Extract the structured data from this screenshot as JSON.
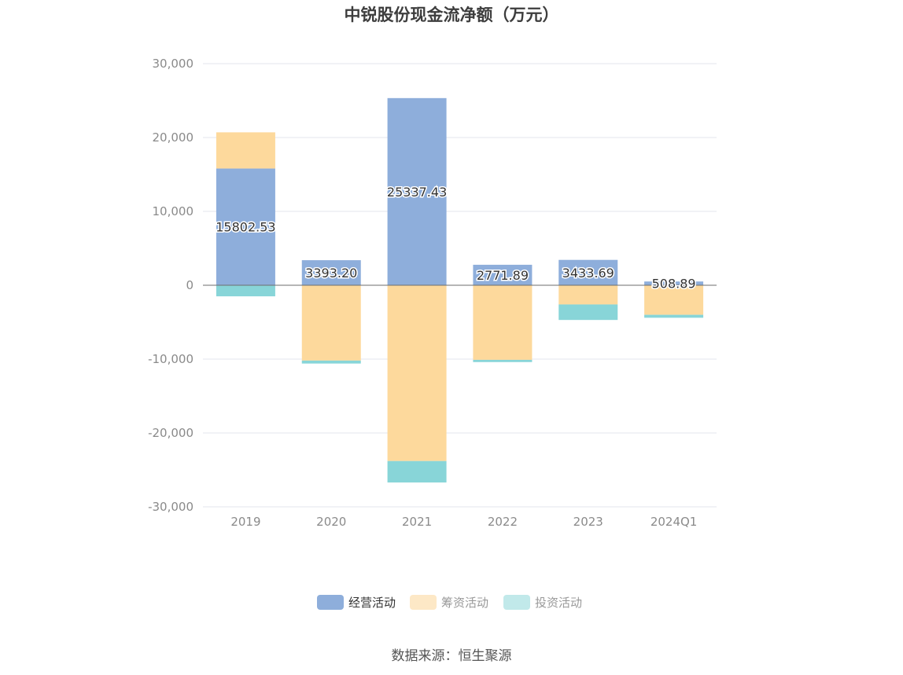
{
  "chart_data": {
    "type": "bar",
    "stacked": true,
    "title": "中锐股份现金流净额（万元）",
    "categories": [
      "2019",
      "2020",
      "2021",
      "2022",
      "2023",
      "2024Q1"
    ],
    "series": [
      {
        "name": "经营活动",
        "color": "#8eaedb",
        "values": [
          15802.53,
          3393.2,
          25337.43,
          2771.89,
          3433.69,
          508.89
        ],
        "labels": [
          "15802.53",
          "3393.20",
          "25337.43",
          "2771.89",
          "3433.69",
          "508.89"
        ]
      },
      {
        "name": "筹资活动",
        "color": "#fdd99c",
        "values": [
          4900,
          -10200,
          -23800,
          -10100,
          -2600,
          -4000
        ]
      },
      {
        "name": "投资活动",
        "color": "#88d5d8",
        "values": [
          -1500,
          -400,
          -2900,
          -300,
          -2100,
          -400
        ]
      }
    ],
    "ylim": [
      -30000,
      30000
    ],
    "yticks": [
      30000,
      20000,
      10000,
      0,
      -10000,
      -20000,
      -30000
    ],
    "ytick_labels": [
      "30,000",
      "20,000",
      "10,000",
      "0",
      "-10,000",
      "-20,000",
      "-30,000"
    ],
    "grid": true,
    "legend": {
      "position": "bottom",
      "items": [
        {
          "label": "经营活动",
          "color": "#8eaedb",
          "text_color": "#333333"
        },
        {
          "label": "筹资活动",
          "color": "#fde8c6",
          "text_color": "#999999"
        },
        {
          "label": "投资活动",
          "color": "#c1e9ea",
          "text_color": "#999999"
        }
      ]
    }
  },
  "source": "数据来源：恒生聚源"
}
